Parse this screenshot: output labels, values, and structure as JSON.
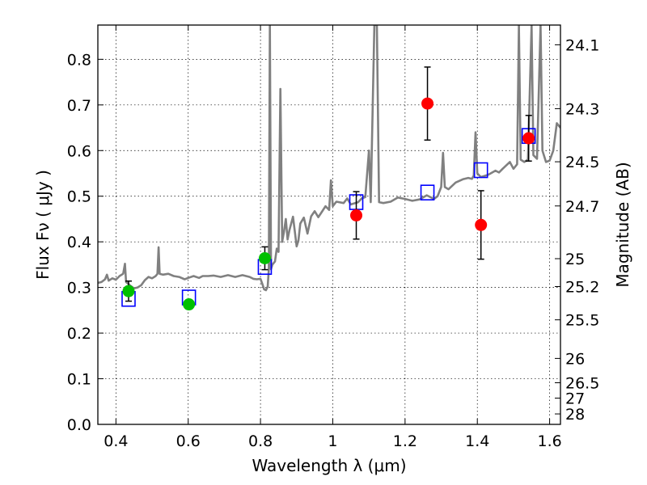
{
  "chart_data": {
    "type": "scatter",
    "title": "",
    "xlabel": "Wavelength  λ (μm)",
    "ylabel": "Flux  Fν  ( μJy )",
    "ylabel_right": "Magnitude (AB)",
    "xlim": [
      0.35,
      1.63
    ],
    "ylim": [
      0.0,
      0.875
    ],
    "grid": true,
    "xticks": [
      {
        "value": 0.4,
        "label": "0.4"
      },
      {
        "value": 0.6,
        "label": "0.6"
      },
      {
        "value": 0.8,
        "label": "0.8"
      },
      {
        "value": 1.0,
        "label": "1"
      },
      {
        "value": 1.2,
        "label": "1.2"
      },
      {
        "value": 1.4,
        "label": "1.4"
      },
      {
        "value": 1.6,
        "label": "1.6"
      }
    ],
    "yticks": [
      {
        "value": 0.0,
        "label": "0.0"
      },
      {
        "value": 0.1,
        "label": "0.1"
      },
      {
        "value": 0.2,
        "label": "0.2"
      },
      {
        "value": 0.3,
        "label": "0.3"
      },
      {
        "value": 0.4,
        "label": "0.4"
      },
      {
        "value": 0.5,
        "label": "0.5"
      },
      {
        "value": 0.6,
        "label": "0.6"
      },
      {
        "value": 0.7,
        "label": "0.7"
      },
      {
        "value": 0.8,
        "label": "0.8"
      }
    ],
    "right_ticks": [
      {
        "label": "24.1",
        "mag": 24.1
      },
      {
        "label": "24.3",
        "mag": 24.3
      },
      {
        "label": "24.5",
        "mag": 24.5
      },
      {
        "label": "24.7",
        "mag": 24.7
      },
      {
        "label": "25",
        "mag": 25.0
      },
      {
        "label": "25.2",
        "mag": 25.2
      },
      {
        "label": "25.5",
        "mag": 25.5
      },
      {
        "label": "26",
        "mag": 26.0
      },
      {
        "label": "26.5",
        "mag": 26.5
      },
      {
        "label": "27",
        "mag": 27.0
      },
      {
        "label": "28",
        "mag": 28.0
      }
    ],
    "series": [
      {
        "name": "model spectrum",
        "kind": "line",
        "color": "#808080",
        "points": [
          [
            0.35,
            0.31
          ],
          [
            0.36,
            0.312
          ],
          [
            0.37,
            0.318
          ],
          [
            0.375,
            0.328
          ],
          [
            0.38,
            0.315
          ],
          [
            0.39,
            0.32
          ],
          [
            0.4,
            0.317
          ],
          [
            0.41,
            0.325
          ],
          [
            0.42,
            0.33
          ],
          [
            0.425,
            0.352
          ],
          [
            0.428,
            0.312
          ],
          [
            0.44,
            0.304
          ],
          [
            0.45,
            0.298
          ],
          [
            0.46,
            0.3
          ],
          [
            0.47,
            0.305
          ],
          [
            0.48,
            0.316
          ],
          [
            0.49,
            0.323
          ],
          [
            0.5,
            0.32
          ],
          [
            0.51,
            0.325
          ],
          [
            0.515,
            0.33
          ],
          [
            0.518,
            0.388
          ],
          [
            0.521,
            0.33
          ],
          [
            0.53,
            0.328
          ],
          [
            0.545,
            0.33
          ],
          [
            0.56,
            0.325
          ],
          [
            0.575,
            0.323
          ],
          [
            0.59,
            0.318
          ],
          [
            0.6,
            0.321
          ],
          [
            0.615,
            0.325
          ],
          [
            0.63,
            0.321
          ],
          [
            0.64,
            0.325
          ],
          [
            0.655,
            0.325
          ],
          [
            0.67,
            0.326
          ],
          [
            0.69,
            0.323
          ],
          [
            0.71,
            0.327
          ],
          [
            0.73,
            0.323
          ],
          [
            0.75,
            0.327
          ],
          [
            0.77,
            0.323
          ],
          [
            0.78,
            0.319
          ],
          [
            0.79,
            0.318
          ],
          [
            0.8,
            0.319
          ],
          [
            0.805,
            0.308
          ],
          [
            0.81,
            0.296
          ],
          [
            0.815,
            0.294
          ],
          [
            0.82,
            0.302
          ],
          [
            0.823,
            0.34
          ],
          [
            0.826,
            0.875
          ],
          [
            0.829,
            0.34
          ],
          [
            0.833,
            0.35
          ],
          [
            0.84,
            0.357
          ],
          [
            0.845,
            0.385
          ],
          [
            0.85,
            0.378
          ],
          [
            0.855,
            0.735
          ],
          [
            0.86,
            0.4
          ],
          [
            0.865,
            0.422
          ],
          [
            0.87,
            0.45
          ],
          [
            0.875,
            0.405
          ],
          [
            0.88,
            0.425
          ],
          [
            0.89,
            0.455
          ],
          [
            0.9,
            0.39
          ],
          [
            0.905,
            0.403
          ],
          [
            0.91,
            0.44
          ],
          [
            0.92,
            0.453
          ],
          [
            0.93,
            0.418
          ],
          [
            0.94,
            0.456
          ],
          [
            0.95,
            0.467
          ],
          [
            0.96,
            0.454
          ],
          [
            0.97,
            0.466
          ],
          [
            0.98,
            0.478
          ],
          [
            0.99,
            0.47
          ],
          [
            0.995,
            0.535
          ],
          [
            1.0,
            0.478
          ],
          [
            1.01,
            0.488
          ],
          [
            1.03,
            0.485
          ],
          [
            1.04,
            0.495
          ],
          [
            1.05,
            0.482
          ],
          [
            1.07,
            0.487
          ],
          [
            1.08,
            0.495
          ],
          [
            1.09,
            0.498
          ],
          [
            1.1,
            0.6
          ],
          [
            1.105,
            0.487
          ],
          [
            1.115,
            0.875
          ],
          [
            1.122,
            0.875
          ],
          [
            1.128,
            0.487
          ],
          [
            1.14,
            0.485
          ],
          [
            1.16,
            0.488
          ],
          [
            1.18,
            0.497
          ],
          [
            1.2,
            0.494
          ],
          [
            1.22,
            0.49
          ],
          [
            1.24,
            0.493
          ],
          [
            1.26,
            0.502
          ],
          [
            1.28,
            0.494
          ],
          [
            1.29,
            0.5
          ],
          [
            1.3,
            0.52
          ],
          [
            1.305,
            0.595
          ],
          [
            1.31,
            0.52
          ],
          [
            1.32,
            0.515
          ],
          [
            1.34,
            0.53
          ],
          [
            1.36,
            0.537
          ],
          [
            1.375,
            0.54
          ],
          [
            1.385,
            0.538
          ],
          [
            1.39,
            0.545
          ],
          [
            1.395,
            0.64
          ],
          [
            1.4,
            0.55
          ],
          [
            1.41,
            0.542
          ],
          [
            1.43,
            0.547
          ],
          [
            1.45,
            0.556
          ],
          [
            1.46,
            0.552
          ],
          [
            1.47,
            0.56
          ],
          [
            1.49,
            0.575
          ],
          [
            1.5,
            0.56
          ],
          [
            1.51,
            0.57
          ],
          [
            1.515,
            0.875
          ],
          [
            1.52,
            0.58
          ],
          [
            1.53,
            0.575
          ],
          [
            1.54,
            0.58
          ],
          [
            1.55,
            0.875
          ],
          [
            1.555,
            0.59
          ],
          [
            1.565,
            0.582
          ],
          [
            1.575,
            0.875
          ],
          [
            1.58,
            0.6
          ],
          [
            1.59,
            0.575
          ],
          [
            1.6,
            0.578
          ],
          [
            1.61,
            0.6
          ],
          [
            1.62,
            0.66
          ],
          [
            1.63,
            0.65
          ]
        ]
      },
      {
        "name": "model photometry",
        "kind": "open-square",
        "color": "#0000ff",
        "points": [
          [
            0.435,
            0.275
          ],
          [
            0.602,
            0.278
          ],
          [
            0.812,
            0.345
          ],
          [
            1.065,
            0.487
          ],
          [
            1.262,
            0.508
          ],
          [
            1.41,
            0.557
          ],
          [
            1.542,
            0.632
          ]
        ]
      },
      {
        "name": "observed (green)",
        "kind": "filled-circle",
        "color": "#00c000",
        "points": [
          {
            "x": 0.435,
            "y": 0.292,
            "err": 0.022
          },
          {
            "x": 0.602,
            "y": 0.263,
            "err": 0.008
          },
          {
            "x": 0.812,
            "y": 0.364,
            "err": 0.025
          }
        ]
      },
      {
        "name": "observed (red)",
        "kind": "filled-circle",
        "color": "#ff0000",
        "points": [
          {
            "x": 1.065,
            "y": 0.458,
            "err": 0.052
          },
          {
            "x": 1.262,
            "y": 0.703,
            "err": 0.08
          },
          {
            "x": 1.41,
            "y": 0.437,
            "err": 0.075
          },
          {
            "x": 1.542,
            "y": 0.627,
            "err": 0.05
          }
        ]
      }
    ]
  }
}
